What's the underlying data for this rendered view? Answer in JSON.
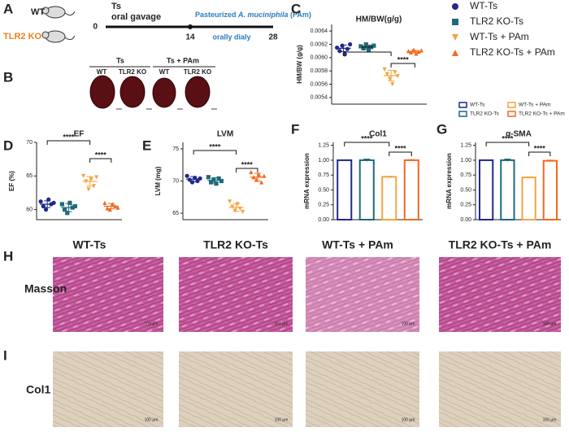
{
  "panel_labels": [
    "A",
    "B",
    "C",
    "D",
    "E",
    "F",
    "G",
    "H",
    "I"
  ],
  "panel_a": {
    "groups": [
      "WT",
      "TLR2 KO"
    ],
    "start_title": "Ts",
    "start_sub": "oral gavage",
    "days": [
      "0",
      "14",
      "28"
    ],
    "treatment": [
      "Pasteurized ",
      "A. muciniphila",
      " (PAm)"
    ],
    "schedule": "orally dialy"
  },
  "panel_b": {
    "conditions": [
      "Ts",
      "Ts + PAm"
    ],
    "genotypes": [
      "WT",
      "TLR2 KO",
      "WT",
      "TLR2 KO"
    ]
  },
  "panel_h": {
    "columns": [
      "WT-Ts",
      "TLR2 KO-Ts",
      "WT-Ts + PAm",
      "TLR2 KO-Ts + PAm"
    ],
    "row_label": "Masson",
    "scale": "100 µm"
  },
  "panel_i": {
    "row_label": "Col1",
    "scale": "100 µm"
  },
  "chart_data": [
    {
      "type": "dot",
      "title": "HM/BW(g/g)",
      "y_label": "HM/BW (g/g)",
      "ylim": [
        0.0053,
        0.0065
      ],
      "yticks": [
        0.0054,
        0.0056,
        0.0058,
        {
          "value": 0.006,
          "label": "0.0060"
        },
        0.0062,
        0.0064
      ],
      "annotations": [
        "****",
        "****"
      ],
      "series": [
        {
          "name": "WT-Ts",
          "color": "#1f2a8a",
          "marker": "circle",
          "values": [
            0.00615,
            0.0061,
            0.00618,
            0.00605,
            0.00613,
            0.0062
          ],
          "mean": 0.00614,
          "sd": 5e-05
        },
        {
          "name": "TLR2 KO-Ts",
          "color": "#1e6b7a",
          "marker": "square",
          "values": [
            0.00617,
            0.00614,
            0.0062,
            0.00612,
            0.00616,
            0.00618
          ],
          "mean": 0.00616,
          "sd": 3e-05
        },
        {
          "name": "WT-Ts + PAm",
          "color": "#f5a443",
          "marker": "triangle-down",
          "values": [
            0.00582,
            0.00575,
            0.00568,
            0.0056,
            0.00578,
            0.00572
          ],
          "mean": 0.00573,
          "sd": 8e-05
        },
        {
          "name": "TLR2 KO-Ts + PAm",
          "color": "#f06a1e",
          "marker": "triangle-up",
          "values": [
            0.0061,
            0.00608,
            0.00612,
            0.00606,
            0.00609,
            0.00611
          ],
          "mean": 0.00609,
          "sd": 2e-05
        }
      ]
    },
    {
      "type": "dot",
      "title": "EF",
      "y_label": "EF (%)",
      "ylim": [
        58.5,
        70
      ],
      "yticks": [
        60,
        65,
        70
      ],
      "annotations": [
        "****",
        "****"
      ],
      "series": [
        {
          "color": "#1f2a8a",
          "marker": "circle",
          "values": [
            61.2,
            60.5,
            60,
            61.5,
            60.8,
            61
          ],
          "mean": 60.8,
          "sd": 0.5
        },
        {
          "color": "#1e6b7a",
          "marker": "square",
          "values": [
            60.8,
            60,
            59.5,
            61,
            60.3,
            60.5
          ],
          "mean": 60.3,
          "sd": 0.6
        },
        {
          "color": "#f5a443",
          "marker": "triangle-down",
          "values": [
            65,
            64.2,
            63,
            64.5,
            63.5,
            64.8
          ],
          "mean": 64.2,
          "sd": 0.7
        },
        {
          "color": "#f06a1e",
          "marker": "triangle-up",
          "values": [
            61,
            60.2,
            60,
            60.8,
            60.5,
            60.3
          ],
          "mean": 60.5,
          "sd": 0.4
        }
      ]
    },
    {
      "type": "dot",
      "title": "LVM",
      "y_label": "LVM (mg)",
      "ylim": [
        64,
        76
      ],
      "yticks": [
        65,
        70,
        75
      ],
      "annotations": [
        "****",
        "****"
      ],
      "series": [
        {
          "color": "#1f2a8a",
          "marker": "circle",
          "values": [
            70.8,
            70.2,
            69.8,
            70.5,
            70,
            70.4
          ],
          "mean": 70.3,
          "sd": 0.4
        },
        {
          "color": "#1e6b7a",
          "marker": "square",
          "values": [
            70.6,
            69.8,
            70.2,
            69.6,
            70.4,
            70
          ],
          "mean": 70.1,
          "sd": 0.4
        },
        {
          "color": "#f5a443",
          "marker": "triangle-down",
          "values": [
            66.8,
            66,
            65.4,
            66.4,
            65.7,
            65.2
          ],
          "mean": 65.9,
          "sd": 0.6
        },
        {
          "color": "#f06a1e",
          "marker": "triangle-up",
          "values": [
            71.4,
            70.6,
            70.2,
            71,
            69.8,
            70.8
          ],
          "mean": 70.6,
          "sd": 0.6
        }
      ]
    },
    {
      "type": "bar",
      "title": "Col1",
      "y_label": "mRNA expression",
      "ylim": [
        0,
        1.3
      ],
      "yticks": [
        {
          "value": 0,
          "label": "0.00"
        },
        0.25,
        {
          "value": 0.5,
          "label": "0.50"
        },
        0.75,
        {
          "value": 1,
          "label": "1.00"
        },
        1.25
      ],
      "annotations": [
        "****",
        "****"
      ],
      "series": [
        {
          "name": "WT-Ts",
          "color": "#1f2a8a",
          "values": [
            1
          ],
          "errors": [
            0
          ]
        },
        {
          "name": "TLR2 KO-Ts",
          "color": "#1e6b7a",
          "values": [
            1
          ],
          "errors": [
            0.02
          ]
        },
        {
          "name": "WT-Ts + PAm",
          "color": "#f5a443",
          "values": [
            0.72
          ],
          "errors": [
            0.01
          ]
        },
        {
          "name": "TLR2 KO-Ts + PAm",
          "color": "#f06a1e",
          "values": [
            1
          ],
          "errors": [
            0.01
          ]
        }
      ]
    },
    {
      "type": "bar",
      "title": "α-SMA",
      "y_label": "mRNA expression",
      "ylim": [
        0,
        1.3
      ],
      "yticks": [
        {
          "value": 0,
          "label": "0.00"
        },
        0.25,
        {
          "value": 0.5,
          "label": "0.50"
        },
        0.75,
        {
          "value": 1,
          "label": "1.00"
        },
        1.25
      ],
      "annotations": [
        "****",
        "****"
      ],
      "series": [
        {
          "color": "#1f2a8a",
          "values": [
            1
          ],
          "errors": [
            0
          ]
        },
        {
          "color": "#1e6b7a",
          "values": [
            1
          ],
          "errors": [
            0.02
          ]
        },
        {
          "color": "#f5a443",
          "values": [
            0.71
          ],
          "errors": [
            0.01
          ]
        },
        {
          "color": "#f06a1e",
          "values": [
            0.99
          ],
          "errors": [
            0.01
          ]
        }
      ]
    }
  ]
}
